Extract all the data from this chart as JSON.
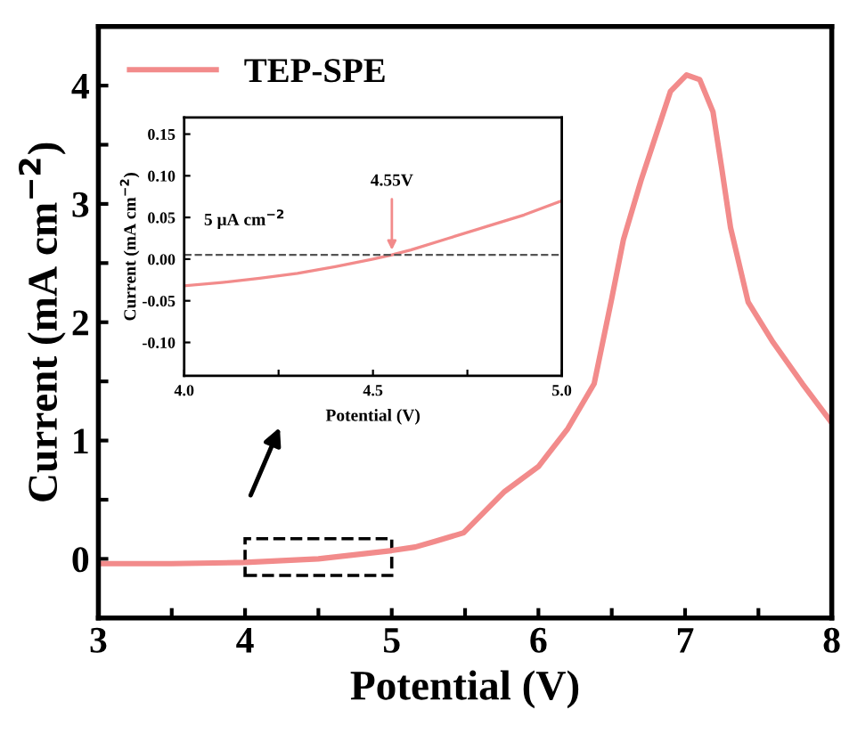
{
  "chart_data": [
    {
      "type": "line",
      "xlabel": "Potential (V)",
      "ylabel": "Current (mA cm$^{−2}$)",
      "xlim": [
        3,
        8
      ],
      "ylim": [
        -0.5,
        4.5
      ],
      "xticks": [
        3,
        {
          "value": 3.5,
          "label": null
        },
        4,
        {
          "value": 4.5,
          "label": null
        },
        5,
        {
          "value": 5.5,
          "label": null
        },
        6,
        {
          "value": 6.5,
          "label": null
        },
        7,
        {
          "value": 7.5,
          "label": null
        },
        8
      ],
      "yticks": [
        {
          "value": -0.5,
          "label": null
        },
        0,
        {
          "value": 0.5,
          "label": null
        },
        1,
        {
          "value": 1.5,
          "label": null
        },
        2,
        {
          "value": 2.5,
          "label": null
        },
        3,
        {
          "value": 3.5,
          "label": null
        },
        4,
        {
          "value": 4.5,
          "label": null
        }
      ],
      "legend": "top left",
      "grid": false,
      "series": [
        {
          "name": "TEP-SPE",
          "color": "#f28b8b",
          "x": [
            3,
            3.5,
            4,
            4.5,
            5,
            5.16,
            5.3,
            5.49,
            5.77,
            6,
            6.2,
            6.38,
            6.5,
            6.58,
            6.7,
            6.78,
            6.9,
            7.01,
            7.1,
            7.19,
            7.25,
            7.31,
            7.43,
            7.6,
            7.8,
            8
          ],
          "values": [
            -0.04,
            -0.04,
            -0.03,
            0.0,
            0.07,
            0.1,
            0.15,
            0.22,
            0.57,
            0.78,
            1.1,
            1.48,
            2.2,
            2.7,
            3.2,
            3.5,
            3.95,
            4.09,
            4.05,
            3.78,
            3.3,
            2.8,
            2.17,
            1.83,
            1.48,
            1.15
          ]
        }
      ]
    },
    {
      "type": "line",
      "xlabel": "Potential (V)",
      "ylabel": "Current (mA cm$^{−2}$)",
      "xlim": [
        4.0,
        5.0
      ],
      "ylim": [
        -0.14,
        0.17
      ],
      "xticks": [
        {
          "value": 4.0,
          "label": "4.0"
        },
        {
          "value": 4.25,
          "label": null
        },
        {
          "value": 4.5,
          "label": "4.5"
        },
        {
          "value": 4.75,
          "label": null
        },
        {
          "value": 5.0,
          "label": "5.0"
        }
      ],
      "yticks": [
        {
          "value": -0.1,
          "label": "-0.10"
        },
        {
          "value": -0.05,
          "label": "-0.05"
        },
        {
          "value": 0.0,
          "label": "0.00"
        },
        {
          "value": 0.05,
          "label": "0.05"
        },
        {
          "value": 0.1,
          "label": "0.10"
        },
        {
          "value": 0.15,
          "label": "0.15"
        }
      ],
      "grid": false,
      "ref_lines": [
        {
          "axis": "y",
          "value": 0.005,
          "label": "5 μA cm$^{−2}$",
          "color": "#555555",
          "line_style": "dashed"
        }
      ],
      "annotations": [
        {
          "text": "4.55V",
          "x": 4.55,
          "y": 0.005
        }
      ],
      "series": [
        {
          "color": "#f28b8b",
          "x": [
            4.0,
            4.1,
            4.2,
            4.3,
            4.4,
            4.5,
            4.55,
            4.6,
            4.7,
            4.8,
            4.9,
            5.0
          ],
          "values": [
            -0.032,
            -0.028,
            -0.023,
            -0.017,
            -0.009,
            0.0,
            0.005,
            0.011,
            0.025,
            0.039,
            0.053,
            0.07
          ]
        }
      ]
    }
  ]
}
